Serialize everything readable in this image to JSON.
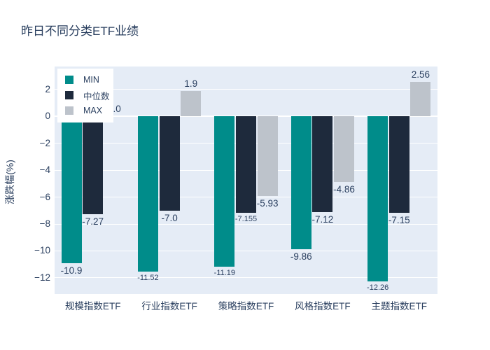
{
  "page": {
    "title": "昨日不同分类ETF业绩"
  },
  "colors": {
    "background": "#ffffff",
    "plot_background": "#e5ecf6",
    "grid": "#ffffff",
    "text": "#2a3f5f",
    "series_min": "#008c8a",
    "series_median": "#1e2a3c",
    "series_max": "#bdc3cb"
  },
  "chart_data": {
    "type": "bar",
    "title": "昨日不同分类ETF业绩",
    "xlabel": "",
    "ylabel": "涨跌幅(%)",
    "categories": [
      "规模指数ETF",
      "行业指数ETF",
      "策略指数ETF",
      "风格指数ETF",
      "主题指数ETF"
    ],
    "series": [
      {
        "name": "MIN",
        "key": "min",
        "color": "#008c8a",
        "values": [
          -10.9,
          -11.52,
          -11.19,
          -9.86,
          -12.26
        ],
        "labels": [
          "-10.9",
          "-11.52",
          "-11.19",
          "-9.86",
          "-12.26"
        ]
      },
      {
        "name": "中位数",
        "key": "median",
        "color": "#1e2a3c",
        "values": [
          -7.27,
          -7.0,
          -7.155,
          -7.12,
          -7.15
        ],
        "labels": [
          "-7.27",
          "-7.0",
          "-7.155",
          "-7.12",
          "-7.15"
        ]
      },
      {
        "name": "MAX",
        "key": "max",
        "color": "#bdc3cb",
        "values": [
          0.0,
          1.9,
          -5.93,
          -4.86,
          2.56
        ],
        "labels": [
          "0.0",
          "1.9",
          "-5.93",
          "-4.86",
          "2.56"
        ]
      }
    ],
    "yticks": [
      2,
      0,
      -2,
      -4,
      -6,
      -8,
      -10,
      -12
    ],
    "ylim": [
      -13.2,
      3.71
    ],
    "grid": true,
    "legend_position": "top-left-inside",
    "bar_value_labels": "outside"
  }
}
